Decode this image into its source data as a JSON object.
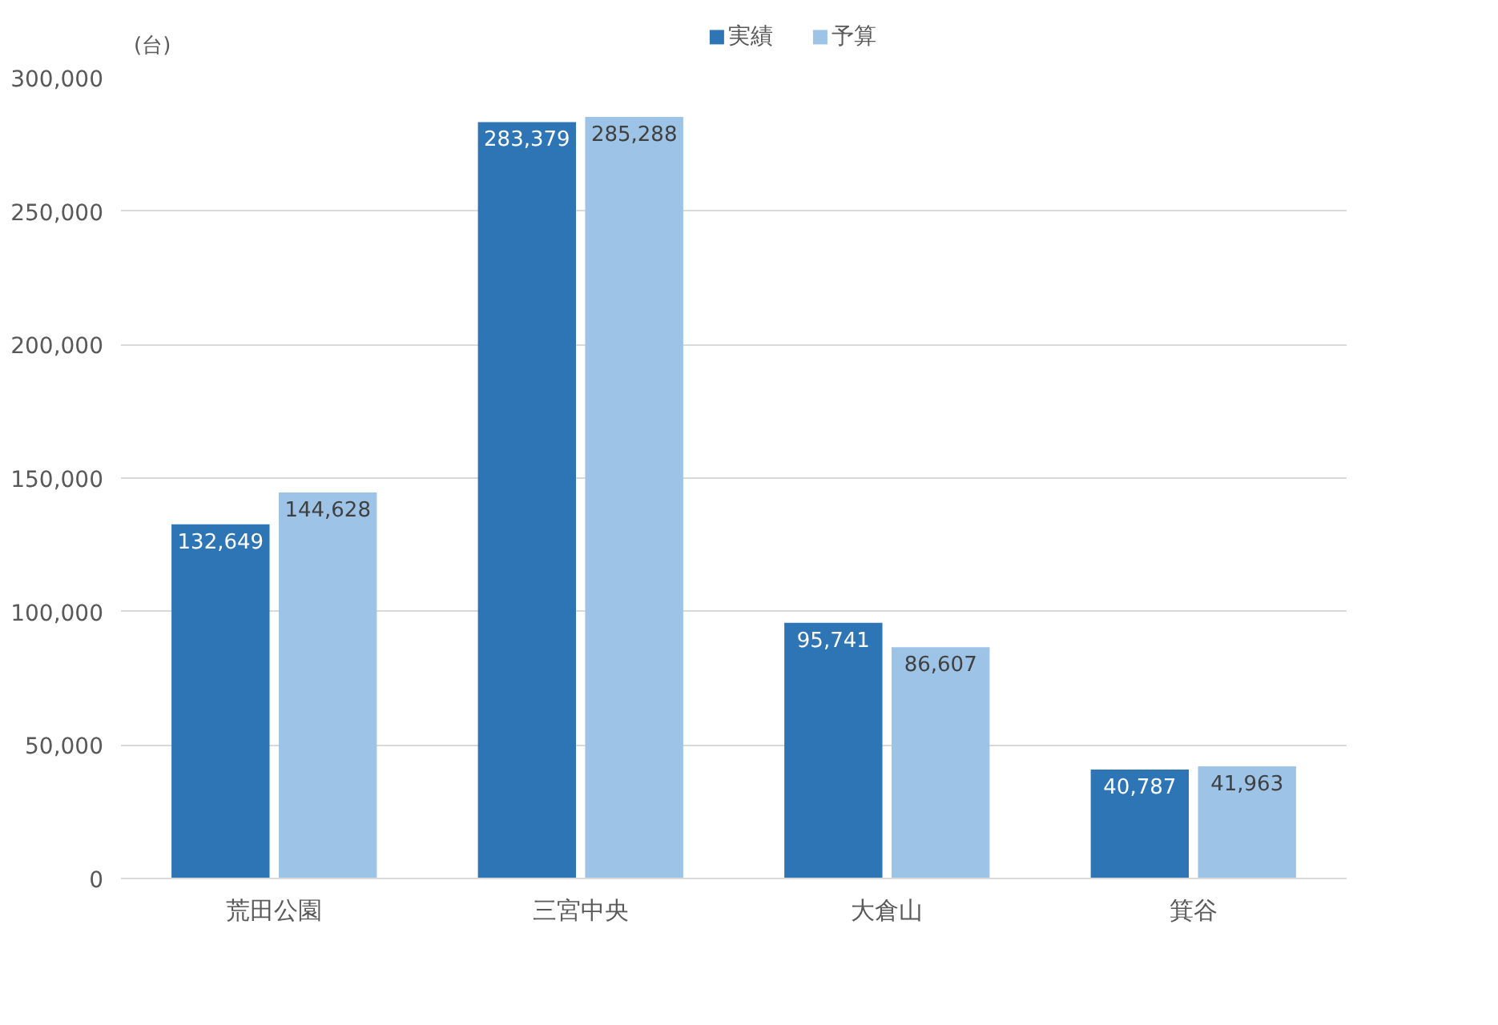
{
  "chart_data": {
    "type": "bar",
    "annotations": [
      "(台)"
    ],
    "categories": [
      "荒田公園",
      "三宮中央",
      "大倉山",
      "箕谷"
    ],
    "series": [
      {
        "name": "実績",
        "color": "#2e75b6",
        "values": [
          132649,
          283379,
          95741,
          40787
        ],
        "value_labels": [
          "132,649",
          "283,379",
          "95,741",
          "40,787"
        ]
      },
      {
        "name": "予算",
        "color": "#9dc3e6",
        "values": [
          144628,
          285288,
          86607,
          41963
        ],
        "value_labels": [
          "144,628",
          "285,288",
          "86,607",
          "41,963"
        ]
      }
    ],
    "ylim": [
      0,
      300000
    ],
    "yticks": [
      0,
      {
        "value": 50000,
        "label": "50,000"
      },
      {
        "value": 100000,
        "label": "100,000"
      },
      {
        "value": 150000,
        "label": "150,000"
      },
      {
        "value": 200000,
        "label": "200,000"
      },
      {
        "value": 250000,
        "label": "250,000"
      },
      {
        "value": 300000,
        "label": "300,000"
      }
    ],
    "grid": "y",
    "legend": "top"
  }
}
